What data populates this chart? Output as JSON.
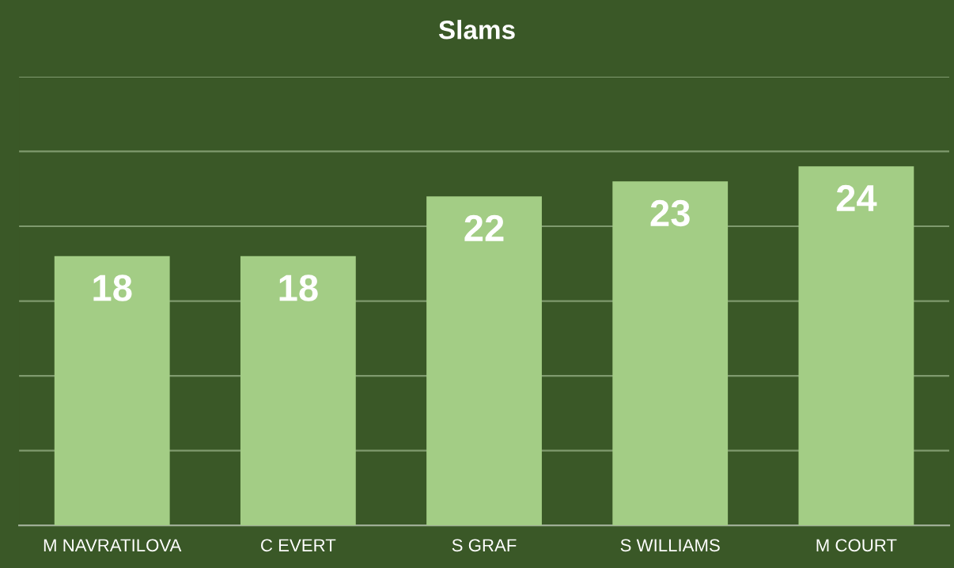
{
  "chart_data": {
    "type": "bar",
    "title": "Slams",
    "categories": [
      "M NAVRATILOVA",
      "C EVERT",
      "S GRAF",
      "S WILLIAMS",
      "M COURT"
    ],
    "values": [
      18,
      18,
      22,
      23,
      24
    ],
    "color": "#a3cd85",
    "ylim": [
      0,
      30
    ],
    "yticks": [
      {
        "value": 0,
        "label": null
      },
      {
        "value": 5,
        "label": null
      },
      {
        "value": 10,
        "label": null
      },
      {
        "value": 15,
        "label": null
      },
      {
        "value": 20,
        "label": null
      },
      {
        "value": 25,
        "label": null
      },
      {
        "value": 30,
        "label": null
      }
    ],
    "grid": "y",
    "data_labels": true,
    "tick_labels": "x"
  }
}
